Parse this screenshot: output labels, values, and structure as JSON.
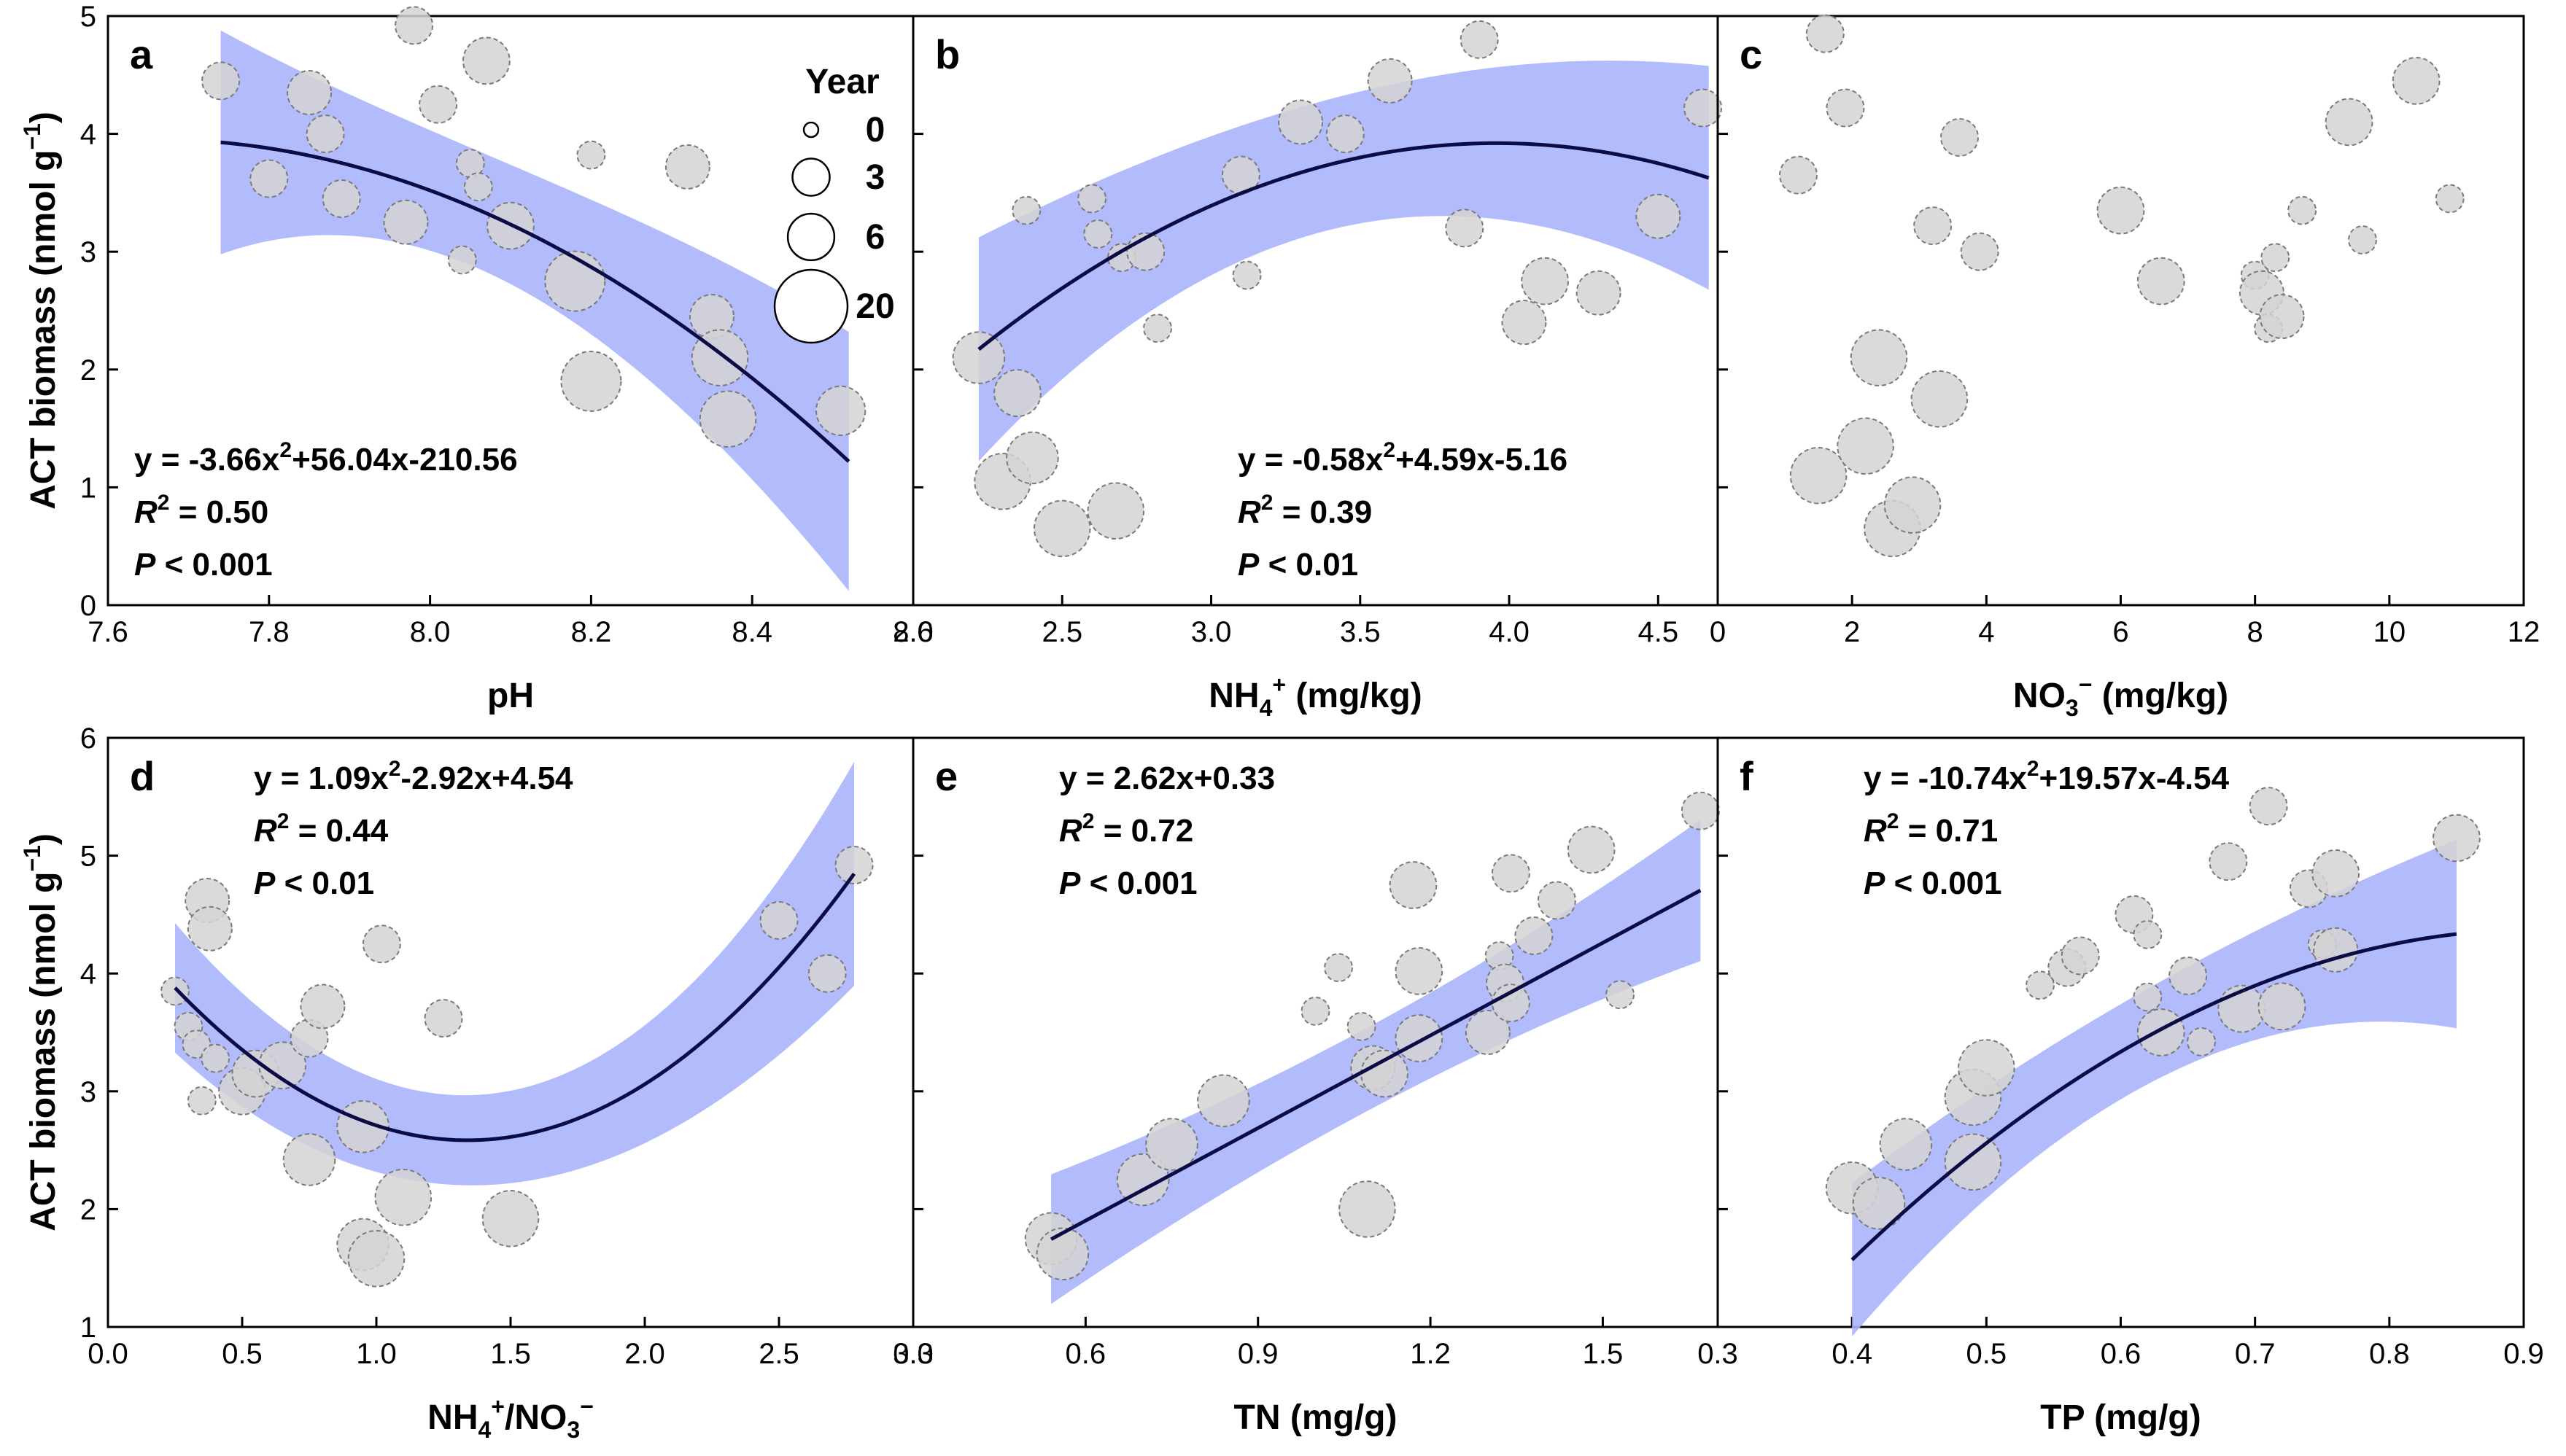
{
  "figure": {
    "y_label_main": "ACT biomass (nmol g",
    "y_label_sup": "−1",
    "y_label_close": ")",
    "legend": {
      "title": "Year",
      "entries": [
        {
          "label": "0",
          "size": 0
        },
        {
          "label": "3",
          "size": 3
        },
        {
          "label": "6",
          "size": 6
        },
        {
          "label": "20",
          "size": 20
        }
      ]
    }
  },
  "chart_data": [
    {
      "panel": "a",
      "type": "scatter",
      "xlabel": {
        "main": "pH",
        "sub": "",
        "sup": "",
        "tail": ""
      },
      "xlim": [
        7.6,
        8.6
      ],
      "ylim": [
        0,
        5
      ],
      "xticks": [
        "7.6",
        "7.8",
        "8.0",
        "8.2",
        "8.4",
        "8.6"
      ],
      "yticks": [
        "0",
        "1",
        "2",
        "3",
        "4",
        "5"
      ],
      "fit": {
        "a": -3.66,
        "b": 56.04,
        "c": -210.56,
        "range": [
          7.74,
          8.52
        ],
        "band": [
          0.95,
          0.15,
          0.55,
          1.1
        ]
      },
      "equation": {
        "pre": "y = -3.66x",
        "sup": "2",
        "post": "+56.04x-210.56"
      },
      "r2": {
        "sym": "R",
        "sup": "2",
        "val": " = 0.50"
      },
      "p": {
        "sym": "P",
        "val": " < 0.001"
      },
      "eq_pos": "bottom-left",
      "points": [
        [
          7.74,
          4.45,
          3
        ],
        [
          7.8,
          3.62,
          3
        ],
        [
          7.85,
          4.35,
          5
        ],
        [
          7.87,
          4.0,
          3
        ],
        [
          7.89,
          3.45,
          3
        ],
        [
          7.97,
          3.25,
          5
        ],
        [
          7.98,
          4.92,
          3
        ],
        [
          8.01,
          4.25,
          3
        ],
        [
          8.04,
          2.93,
          1
        ],
        [
          8.05,
          3.75,
          1
        ],
        [
          8.06,
          3.55,
          1
        ],
        [
          8.07,
          4.62,
          6
        ],
        [
          8.1,
          3.22,
          6
        ],
        [
          8.18,
          2.75,
          12
        ],
        [
          8.2,
          3.82,
          1
        ],
        [
          8.2,
          1.9,
          12
        ],
        [
          8.32,
          3.72,
          5
        ],
        [
          8.35,
          2.45,
          5
        ],
        [
          8.36,
          2.1,
          10
        ],
        [
          8.37,
          1.58,
          10
        ],
        [
          8.51,
          1.65,
          7
        ]
      ]
    },
    {
      "panel": "b",
      "type": "scatter",
      "xlabel": {
        "main": "NH",
        "sub": "4",
        "sup": "+",
        "tail": " (mg/kg)"
      },
      "xlim": [
        2.0,
        4.7
      ],
      "ylim": [
        0,
        5
      ],
      "xticks": [
        "2.0",
        "2.5",
        "3.0",
        "3.5",
        "4.0",
        "4.5"
      ],
      "yticks": [],
      "fit": {
        "a": -0.58,
        "b": 4.59,
        "c": -5.16,
        "range": [
          2.22,
          4.67
        ],
        "band": [
          0.95,
          0.35,
          0.5,
          0.95
        ]
      },
      "equation": {
        "pre": "y = -0.58x",
        "sup": "2",
        "post": "+4.59x-5.16"
      },
      "r2": {
        "sym": "R",
        "sup": "2",
        "val": " = 0.39"
      },
      "p": {
        "sym": "P",
        "val": " < 0.01"
      },
      "eq_pos": "bottom-right",
      "points": [
        [
          2.22,
          2.1,
          8
        ],
        [
          2.3,
          1.05,
          10
        ],
        [
          2.35,
          1.8,
          6
        ],
        [
          2.38,
          3.35,
          1
        ],
        [
          2.4,
          1.25,
          8
        ],
        [
          2.5,
          0.65,
          10
        ],
        [
          2.6,
          3.45,
          1
        ],
        [
          2.62,
          3.15,
          1
        ],
        [
          2.68,
          0.8,
          10
        ],
        [
          2.7,
          2.95,
          1
        ],
        [
          2.78,
          3.0,
          3
        ],
        [
          2.82,
          2.35,
          1
        ],
        [
          3.1,
          3.65,
          3
        ],
        [
          3.12,
          2.8,
          1
        ],
        [
          3.3,
          4.1,
          5
        ],
        [
          3.45,
          4.0,
          3
        ],
        [
          3.6,
          4.45,
          5
        ],
        [
          3.85,
          3.2,
          3
        ],
        [
          3.9,
          4.8,
          3
        ],
        [
          4.05,
          2.4,
          5
        ],
        [
          4.12,
          2.75,
          6
        ],
        [
          4.3,
          2.65,
          5
        ],
        [
          4.5,
          3.3,
          5
        ],
        [
          4.65,
          4.22,
          3
        ]
      ]
    },
    {
      "panel": "c",
      "type": "scatter",
      "xlabel": {
        "main": "NO",
        "sub": "3",
        "sup": "−",
        "tail": " (mg/kg)"
      },
      "xlim": [
        0,
        12
      ],
      "ylim": [
        0,
        5
      ],
      "xticks": [
        "0",
        "2",
        "4",
        "6",
        "8",
        "10",
        "12"
      ],
      "yticks": [],
      "fit": null,
      "eq_pos": "none",
      "points": [
        [
          1.2,
          3.65,
          3
        ],
        [
          1.5,
          1.1,
          10
        ],
        [
          1.6,
          4.85,
          3
        ],
        [
          1.9,
          4.22,
          3
        ],
        [
          2.2,
          1.35,
          10
        ],
        [
          2.4,
          2.1,
          10
        ],
        [
          2.6,
          0.65,
          10
        ],
        [
          2.9,
          0.85,
          10
        ],
        [
          3.2,
          3.22,
          3
        ],
        [
          3.3,
          1.75,
          10
        ],
        [
          3.6,
          3.97,
          3
        ],
        [
          3.9,
          3.0,
          3
        ],
        [
          6.0,
          3.35,
          6
        ],
        [
          6.6,
          2.75,
          6
        ],
        [
          8.0,
          2.8,
          1
        ],
        [
          8.2,
          2.35,
          1
        ],
        [
          8.1,
          2.65,
          5
        ],
        [
          8.3,
          2.95,
          1
        ],
        [
          8.4,
          2.45,
          5
        ],
        [
          8.7,
          3.35,
          1
        ],
        [
          9.4,
          4.1,
          6
        ],
        [
          9.6,
          3.1,
          1
        ],
        [
          10.4,
          4.45,
          6
        ],
        [
          10.9,
          3.45,
          1
        ]
      ]
    },
    {
      "panel": "d",
      "type": "scatter",
      "xlabel": {
        "main": "NH",
        "sub": "4",
        "sup": "+",
        "tail": "/NO",
        "sub2": "3",
        "sup2": "−"
      },
      "xlim": [
        0,
        3.0
      ],
      "ylim": [
        1,
        6
      ],
      "xticks": [
        "0.0",
        "0.5",
        "1.0",
        "1.5",
        "2.0",
        "2.5",
        "3.0"
      ],
      "yticks": [
        "1",
        "2",
        "3",
        "4",
        "5",
        "6"
      ],
      "fit": {
        "a": 1.09,
        "b": -2.92,
        "c": 4.54,
        "range": [
          0.25,
          2.78
        ],
        "band": [
          0.55,
          0.3,
          0.25,
          0.95
        ]
      },
      "equation": {
        "pre": "y = 1.09x",
        "sup": "2",
        "post": "-2.92x+4.54"
      },
      "r2": {
        "sym": "R",
        "sup": "2",
        "val": " = 0.44"
      },
      "p": {
        "sym": "P",
        "val": " < 0.01"
      },
      "eq_pos": "top-left",
      "points": [
        [
          0.25,
          3.85,
          1
        ],
        [
          0.3,
          3.55,
          1
        ],
        [
          0.33,
          3.4,
          1
        ],
        [
          0.35,
          2.92,
          1
        ],
        [
          0.37,
          4.62,
          5
        ],
        [
          0.38,
          4.38,
          5
        ],
        [
          0.4,
          3.28,
          1
        ],
        [
          0.5,
          3.0,
          6
        ],
        [
          0.55,
          3.15,
          6
        ],
        [
          0.65,
          3.22,
          6
        ],
        [
          0.75,
          3.45,
          3
        ],
        [
          0.75,
          2.42,
          8
        ],
        [
          0.8,
          3.72,
          5
        ],
        [
          0.95,
          2.7,
          8
        ],
        [
          0.95,
          1.7,
          8
        ],
        [
          1.0,
          1.58,
          10
        ],
        [
          1.02,
          4.25,
          3
        ],
        [
          1.1,
          2.1,
          10
        ],
        [
          1.25,
          3.62,
          3
        ],
        [
          1.5,
          1.92,
          10
        ],
        [
          2.5,
          4.45,
          3
        ],
        [
          2.68,
          4.0,
          3
        ],
        [
          2.78,
          4.92,
          3
        ]
      ]
    },
    {
      "panel": "e",
      "type": "scatter",
      "xlabel": {
        "main": "TN (mg/g)",
        "sub": "",
        "sup": "",
        "tail": ""
      },
      "xlim": [
        0.3,
        1.7
      ],
      "ylim": [
        1,
        6
      ],
      "xticks": [
        "0.3",
        "0.6",
        "0.9",
        "1.2",
        "1.5"
      ],
      "yticks": [],
      "fit": {
        "a": 0,
        "b": 2.62,
        "c": 0.33,
        "range": [
          0.54,
          1.67
        ],
        "band": [
          0.55,
          0.28,
          0.28,
          0.6
        ]
      },
      "equation": {
        "pre": "y = 2.62x+0.33",
        "sup": "",
        "post": ""
      },
      "r2": {
        "sym": "R",
        "sup": "2",
        "val": " = 0.72"
      },
      "p": {
        "sym": "P",
        "val": " < 0.001"
      },
      "eq_pos": "top-left",
      "points": [
        [
          0.54,
          1.75,
          8
        ],
        [
          0.56,
          1.62,
          8
        ],
        [
          0.7,
          2.25,
          8
        ],
        [
          0.75,
          2.55,
          8
        ],
        [
          0.84,
          2.92,
          8
        ],
        [
          1.0,
          3.68,
          1
        ],
        [
          1.04,
          4.05,
          1
        ],
        [
          1.08,
          3.55,
          1
        ],
        [
          1.09,
          2.0,
          10
        ],
        [
          1.1,
          3.2,
          5
        ],
        [
          1.12,
          3.15,
          6
        ],
        [
          1.17,
          4.75,
          6
        ],
        [
          1.18,
          4.02,
          6
        ],
        [
          1.18,
          3.45,
          6
        ],
        [
          1.3,
          3.5,
          5
        ],
        [
          1.32,
          4.15,
          1
        ],
        [
          1.33,
          3.92,
          3
        ],
        [
          1.34,
          3.75,
          3
        ],
        [
          1.34,
          4.85,
          3
        ],
        [
          1.38,
          4.32,
          3
        ],
        [
          1.42,
          4.62,
          3
        ],
        [
          1.48,
          5.05,
          6
        ],
        [
          1.53,
          3.82,
          1
        ],
        [
          1.67,
          5.38,
          3
        ]
      ]
    },
    {
      "panel": "f",
      "type": "scatter",
      "xlabel": {
        "main": "TP (mg/g)",
        "sub": "",
        "sup": "",
        "tail": ""
      },
      "xlim": [
        0.3,
        0.9
      ],
      "ylim": [
        1,
        6
      ],
      "xticks": [
        "0.3",
        "0.4",
        "0.5",
        "0.6",
        "0.7",
        "0.8",
        "0.9"
      ],
      "yticks": [],
      "fit": {
        "a": -10.74,
        "b": 19.57,
        "c": -4.54,
        "range": [
          0.4,
          0.85
        ],
        "band": [
          0.65,
          0.3,
          0.3,
          0.8
        ]
      },
      "equation": {
        "pre": "y = -10.74x",
        "sup": "2",
        "post": "+19.57x-4.54"
      },
      "r2": {
        "sym": "R",
        "sup": "2",
        "val": " = 0.71"
      },
      "p": {
        "sym": "P",
        "val": " < 0.001"
      },
      "eq_pos": "top-left",
      "points": [
        [
          0.4,
          2.18,
          8
        ],
        [
          0.42,
          2.05,
          8
        ],
        [
          0.44,
          2.55,
          8
        ],
        [
          0.49,
          2.4,
          10
        ],
        [
          0.49,
          2.95,
          10
        ],
        [
          0.5,
          3.2,
          10
        ],
        [
          0.54,
          3.9,
          1
        ],
        [
          0.56,
          4.05,
          3
        ],
        [
          0.57,
          4.15,
          3
        ],
        [
          0.61,
          4.5,
          3
        ],
        [
          0.62,
          4.33,
          1
        ],
        [
          0.62,
          3.8,
          1
        ],
        [
          0.63,
          3.5,
          6
        ],
        [
          0.65,
          3.98,
          3
        ],
        [
          0.66,
          3.42,
          1
        ],
        [
          0.68,
          4.95,
          3
        ],
        [
          0.69,
          3.7,
          6
        ],
        [
          0.71,
          5.42,
          3
        ],
        [
          0.72,
          3.72,
          6
        ],
        [
          0.74,
          4.72,
          3
        ],
        [
          0.75,
          4.25,
          1
        ],
        [
          0.76,
          4.85,
          6
        ],
        [
          0.76,
          4.2,
          5
        ],
        [
          0.85,
          5.15,
          6
        ]
      ]
    }
  ]
}
